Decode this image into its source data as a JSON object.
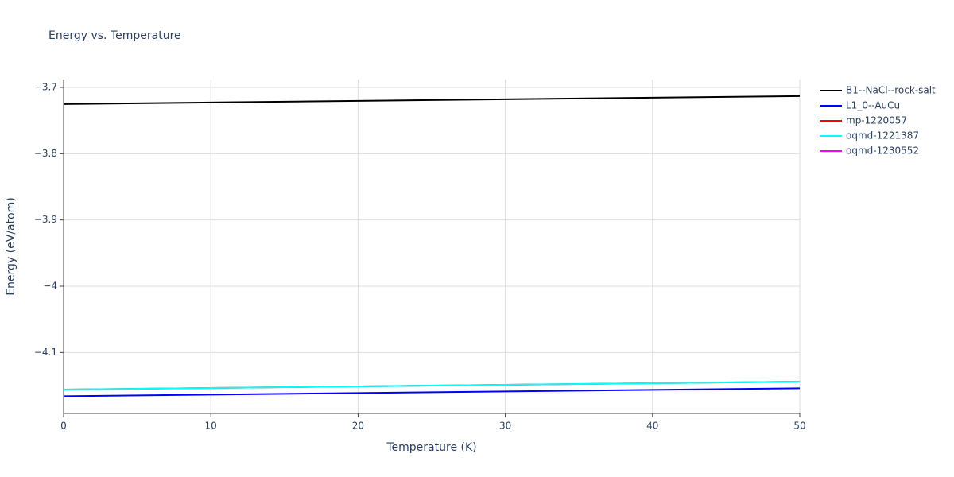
{
  "chart_data": {
    "type": "line",
    "title": "Energy vs. Temperature",
    "x_label": "Temperature (K)",
    "y_label": "Energy (eV/atom)",
    "x": [
      0,
      50
    ],
    "series": [
      {
        "name": "B1--NaCl--rock-salt",
        "color": "#000000",
        "values": [
          -3.725,
          -3.713
        ]
      },
      {
        "name": "L1_0--AuCu",
        "color": "#0000ff",
        "values": [
          -4.166,
          -4.154
        ]
      },
      {
        "name": "mp-1220057",
        "color": "#ff0000",
        "values": [
          -4.156,
          -4.144
        ]
      },
      {
        "name": "oqmd-1221387",
        "color": "#00ffff",
        "values": [
          -4.156,
          -4.144
        ]
      },
      {
        "name": "oqmd-1230552",
        "color": "#ff00ff",
        "values": [
          null,
          null
        ]
      }
    ],
    "xlim": [
      0,
      50
    ],
    "xticks": [
      0,
      10,
      20,
      30,
      40,
      50
    ],
    "ylim": [
      -4.192,
      -3.688
    ],
    "yticks": [
      {
        "value": -4.1,
        "label": "−4.1"
      },
      {
        "value": -4,
        "label": "−4"
      },
      {
        "value": -3.9,
        "label": "−3.9"
      },
      {
        "value": -3.8,
        "label": "−3.8"
      },
      {
        "value": -3.7,
        "label": "−3.7"
      }
    ],
    "grid": true,
    "legend": "right"
  }
}
